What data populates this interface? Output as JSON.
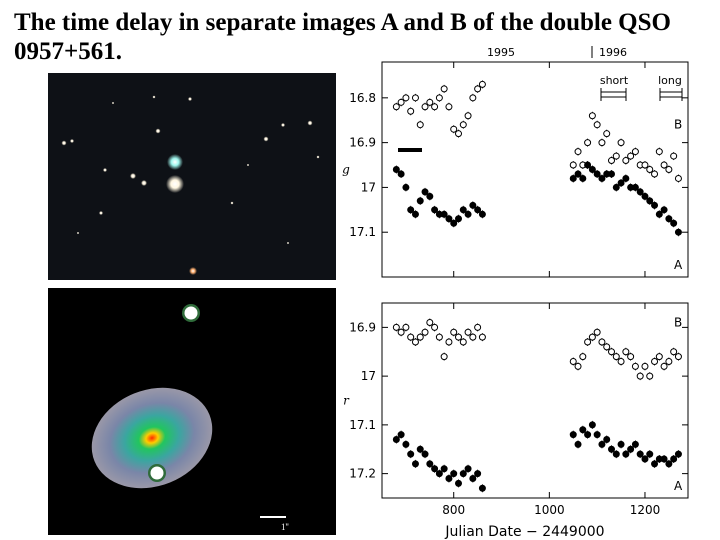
{
  "title": "The time delay in separate images A and B of the double QSO 0957+561.",
  "images": {
    "top": {
      "icon": "qso-field-photograph"
    },
    "bottom": {
      "icon": "lens-galaxy-false-color-image",
      "scale_label": "1''"
    }
  },
  "chart_data": {
    "type": "scatter",
    "top_axis": {
      "labels": [
        "1995",
        "1996"
      ]
    },
    "annotations": {
      "short": "short",
      "long": "long"
    },
    "xlabel": "Julian Date − 2449000",
    "x_ticks": [
      800,
      1000,
      1200
    ],
    "xlim": [
      650,
      1290
    ],
    "panels": [
      {
        "band": "g",
        "ylim": [
          17.2,
          16.72
        ],
        "y_ticks": [
          "16.8",
          "16.9",
          "17",
          "17.1"
        ],
        "y_tick_values": [
          16.8,
          16.9,
          17.0,
          17.1
        ],
        "series": [
          {
            "name": "B",
            "marker": "open",
            "x": [
              680,
              690,
              700,
              710,
              720,
              730,
              740,
              750,
              760,
              770,
              780,
              790,
              800,
              810,
              820,
              830,
              840,
              850,
              860,
              1050,
              1060,
              1070,
              1080,
              1090,
              1100,
              1110,
              1120,
              1130,
              1140,
              1150,
              1160,
              1170,
              1180,
              1190,
              1200,
              1210,
              1220,
              1230,
              1240,
              1250,
              1260,
              1270
            ],
            "y": [
              16.82,
              16.81,
              16.8,
              16.83,
              16.8,
              16.86,
              16.82,
              16.81,
              16.82,
              16.8,
              16.78,
              16.82,
              16.87,
              16.88,
              16.86,
              16.84,
              16.8,
              16.78,
              16.77,
              16.95,
              16.92,
              16.95,
              16.9,
              16.84,
              16.86,
              16.9,
              16.88,
              16.94,
              16.93,
              16.9,
              16.94,
              16.93,
              16.92,
              16.95,
              16.95,
              16.96,
              16.97,
              16.92,
              16.95,
              16.96,
              16.93,
              16.98
            ]
          },
          {
            "name": "A",
            "marker": "filled",
            "x": [
              680,
              690,
              700,
              710,
              720,
              730,
              740,
              750,
              760,
              770,
              780,
              790,
              800,
              810,
              820,
              830,
              840,
              850,
              860,
              1050,
              1060,
              1070,
              1080,
              1090,
              1100,
              1110,
              1120,
              1130,
              1140,
              1150,
              1160,
              1170,
              1180,
              1190,
              1200,
              1210,
              1220,
              1230,
              1240,
              1250,
              1260,
              1270
            ],
            "y": [
              16.96,
              16.97,
              17.0,
              17.05,
              17.06,
              17.03,
              17.01,
              17.02,
              17.05,
              17.06,
              17.06,
              17.07,
              17.08,
              17.07,
              17.05,
              17.06,
              17.04,
              17.05,
              17.06,
              16.98,
              16.97,
              16.98,
              16.95,
              16.96,
              16.97,
              16.98,
              16.97,
              16.97,
              17.0,
              16.99,
              16.98,
              17.0,
              17.0,
              17.01,
              17.02,
              17.03,
              17.04,
              17.06,
              17.05,
              17.07,
              17.08,
              17.1
            ]
          }
        ],
        "labels": {
          "B": "B",
          "A": "A"
        }
      },
      {
        "band": "r",
        "ylim": [
          17.25,
          16.85
        ],
        "y_ticks": [
          "16.9",
          "17",
          "17.1",
          "17.2"
        ],
        "y_tick_values": [
          16.9,
          17.0,
          17.1,
          17.2
        ],
        "series": [
          {
            "name": "B",
            "marker": "open",
            "x": [
              680,
              690,
              700,
              710,
              720,
              730,
              740,
              750,
              760,
              770,
              780,
              790,
              800,
              810,
              820,
              830,
              840,
              850,
              860,
              1050,
              1060,
              1070,
              1080,
              1090,
              1100,
              1110,
              1120,
              1130,
              1140,
              1150,
              1160,
              1170,
              1180,
              1190,
              1200,
              1210,
              1220,
              1230,
              1240,
              1250,
              1260,
              1270
            ],
            "y": [
              16.9,
              16.91,
              16.9,
              16.92,
              16.93,
              16.92,
              16.91,
              16.89,
              16.9,
              16.92,
              16.96,
              16.93,
              16.91,
              16.92,
              16.93,
              16.91,
              16.92,
              16.9,
              16.92,
              16.97,
              16.98,
              16.96,
              16.93,
              16.92,
              16.91,
              16.93,
              16.94,
              16.95,
              16.96,
              16.97,
              16.95,
              16.96,
              16.98,
              17.0,
              16.98,
              17.0,
              16.97,
              16.96,
              16.98,
              16.97,
              16.95,
              16.96
            ]
          },
          {
            "name": "A",
            "marker": "filled",
            "x": [
              680,
              690,
              700,
              710,
              720,
              730,
              740,
              750,
              760,
              770,
              780,
              790,
              800,
              810,
              820,
              830,
              840,
              850,
              860,
              1050,
              1060,
              1070,
              1080,
              1090,
              1100,
              1110,
              1120,
              1130,
              1140,
              1150,
              1160,
              1170,
              1180,
              1190,
              1200,
              1210,
              1220,
              1230,
              1240,
              1250,
              1260,
              1270
            ],
            "y": [
              17.13,
              17.12,
              17.14,
              17.16,
              17.18,
              17.15,
              17.16,
              17.18,
              17.19,
              17.2,
              17.19,
              17.21,
              17.2,
              17.22,
              17.2,
              17.19,
              17.21,
              17.2,
              17.23,
              17.12,
              17.14,
              17.11,
              17.12,
              17.1,
              17.12,
              17.14,
              17.13,
              17.15,
              17.16,
              17.14,
              17.16,
              17.15,
              17.14,
              17.16,
              17.17,
              17.16,
              17.18,
              17.17,
              17.17,
              17.18,
              17.17,
              17.16
            ]
          }
        ],
        "labels": {
          "B": "B",
          "A": "A"
        }
      }
    ]
  }
}
